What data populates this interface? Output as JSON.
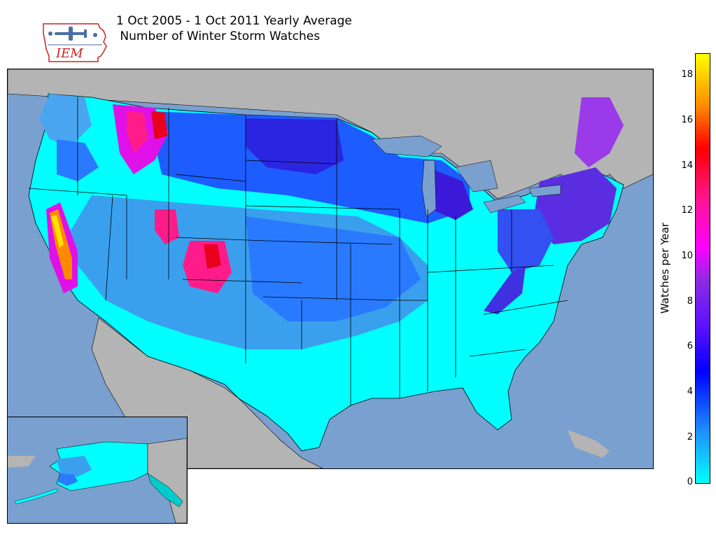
{
  "title": {
    "line1": "1 Oct 2005 - 1 Oct 2011 Yearly Average",
    "line2": " Number of Winter Storm Watches"
  },
  "logo": {
    "text": "IEM"
  },
  "colorbar": {
    "label": "Watches per Year",
    "ticks": [
      "0",
      "2",
      "4",
      "6",
      "8",
      "10",
      "12",
      "14",
      "16",
      "18"
    ],
    "colors": [
      "#00ffff",
      "#1e90ff",
      "#0000ff",
      "#8a2be2",
      "#ff00ff",
      "#ff1493",
      "#ff0000",
      "#ff8c00",
      "#ffff00"
    ]
  },
  "map": {
    "ocean_color": "#7aa0cf",
    "land_color": "#b4b4b4"
  }
}
